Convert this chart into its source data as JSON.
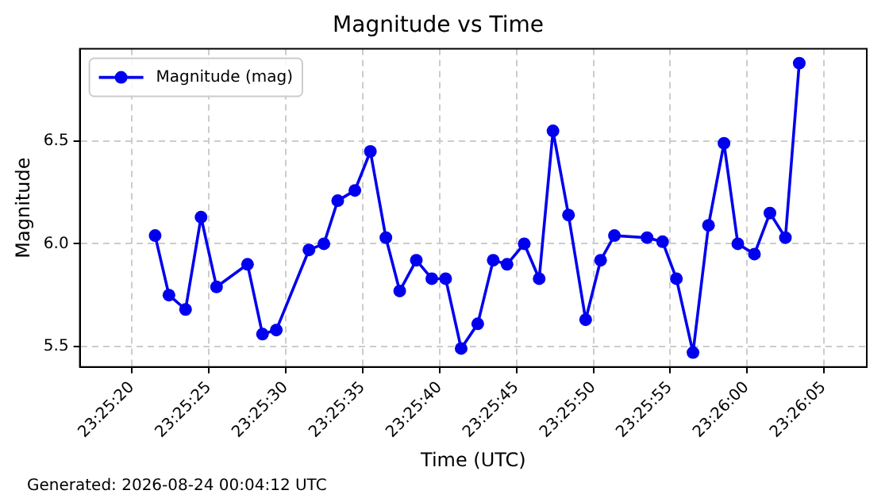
{
  "chart_data": {
    "type": "line",
    "title": "Magnitude vs Time",
    "xlabel": "Time (UTC)",
    "ylabel": "Magnitude",
    "annotations": [
      "Generated: 2026-08-24 00:04:12 UTC"
    ],
    "x": [
      23.42264,
      23.42289,
      23.42319,
      23.42347,
      23.42375,
      23.42431,
      23.42458,
      23.42483,
      23.42542,
      23.42569,
      23.42594,
      23.42625,
      23.42653,
      23.42681,
      23.42706,
      23.42736,
      23.42764,
      23.42789,
      23.42817,
      23.42847,
      23.42875,
      23.429,
      23.42931,
      23.42958,
      23.42983,
      23.43011,
      23.43042,
      23.43069,
      23.43094,
      23.43153,
      23.43181,
      23.43206,
      23.43236,
      23.43264,
      23.43292,
      23.43317,
      23.43347,
      23.43375,
      23.43403,
      23.43428
    ],
    "series": [
      {
        "name": "Magnitude (mag)",
        "color": "#0000ee",
        "values": [
          6.04,
          5.75,
          5.68,
          6.13,
          5.79,
          5.9,
          5.56,
          5.58,
          5.97,
          6.0,
          6.21,
          6.26,
          6.45,
          6.03,
          5.77,
          5.92,
          5.83,
          5.83,
          5.49,
          5.61,
          5.92,
          5.9,
          6.0,
          5.83,
          6.55,
          6.14,
          5.63,
          5.92,
          6.04,
          6.03,
          6.01,
          5.83,
          5.47,
          6.09,
          6.49,
          6.0,
          5.95,
          6.15,
          6.03,
          6.88
        ]
      }
    ],
    "xlim": [
      23.42128,
      23.4355
    ],
    "xticks": [
      {
        "value": 23.42222,
        "label": "23:25:20"
      },
      {
        "value": 23.42361,
        "label": "23:25:25"
      },
      {
        "value": 23.425,
        "label": "23:25:30"
      },
      {
        "value": 23.42639,
        "label": "23:25:35"
      },
      {
        "value": 23.42778,
        "label": "23:25:40"
      },
      {
        "value": 23.42917,
        "label": "23:25:45"
      },
      {
        "value": 23.43056,
        "label": "23:25:50"
      },
      {
        "value": 23.43194,
        "label": "23:25:55"
      },
      {
        "value": 23.43333,
        "label": "23:26:00"
      },
      {
        "value": 23.43472,
        "label": "23:26:05"
      }
    ],
    "ylim": [
      5.4,
      6.95
    ],
    "yticks": [
      {
        "value": 5.5,
        "label": "5.5"
      },
      {
        "value": 6,
        "label": "6.0"
      },
      {
        "value": 6.5,
        "label": "6.5"
      }
    ],
    "grid": true,
    "legend": "top left",
    "marker": "circle",
    "line_style": "solid"
  }
}
